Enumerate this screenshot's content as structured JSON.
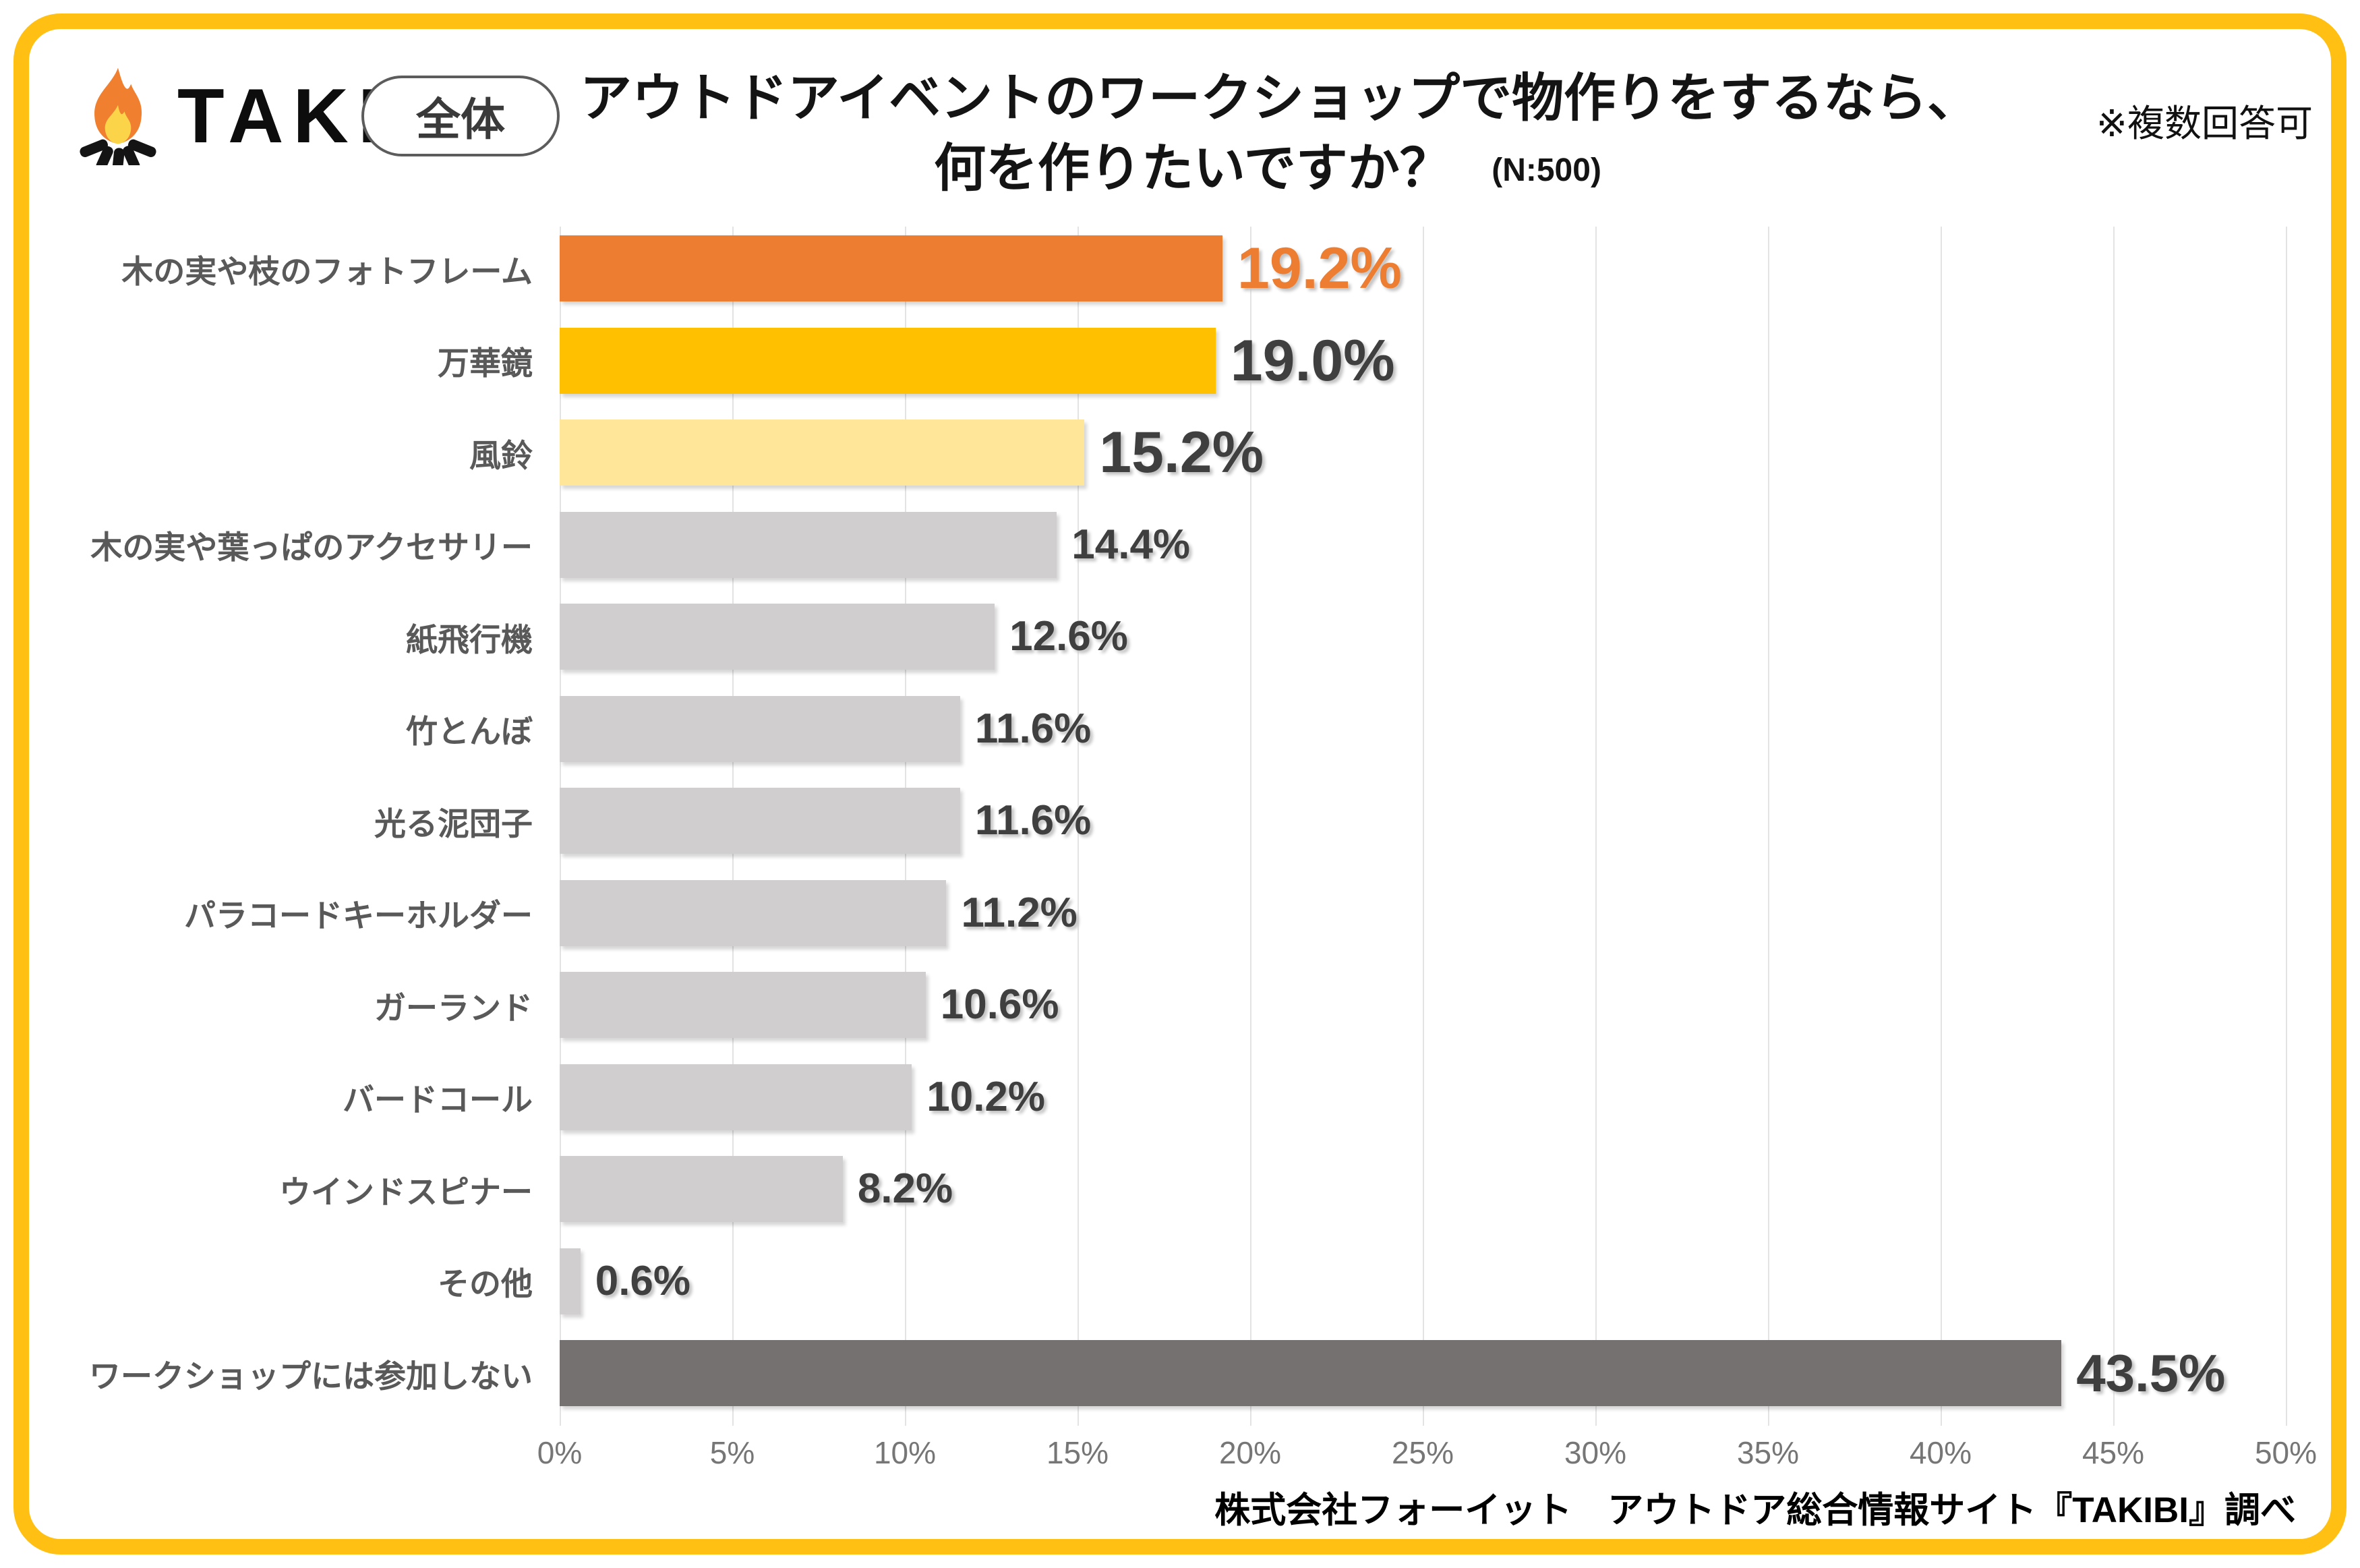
{
  "header": {
    "logo_text": "TAKIBI",
    "scope_badge": "全体",
    "title_line1": "アウトドアイベントのワークショップで物作りをするなら、",
    "title_line2": "何を作りたいですか？",
    "sample_note": "(N:500)",
    "multi_answer_note": "※複数回答可"
  },
  "chart_data": {
    "type": "bar",
    "orientation": "horizontal",
    "title": "アウトドアイベントのワークショップで物作りをするなら、何を作りたいですか？",
    "sample_size": "N:500",
    "categories": [
      "木の実や枝のフォトフレーム",
      "万華鏡",
      "風鈴",
      "木の実や葉っぱのアクセサリー",
      "紙飛行機",
      "竹とんぼ",
      "光る泥団子",
      "パラコードキーホルダー",
      "ガーランド",
      "バードコール",
      "ウインドスピナー",
      "その他",
      "ワークショップには参加しない"
    ],
    "values": [
      19.2,
      19.0,
      15.2,
      14.4,
      12.6,
      11.6,
      11.6,
      11.2,
      10.6,
      10.2,
      8.2,
      0.6,
      43.5
    ],
    "value_labels": [
      "19.2%",
      "19.0%",
      "15.2%",
      "14.4%",
      "12.6%",
      "11.6%",
      "11.6%",
      "11.2%",
      "10.6%",
      "10.2%",
      "8.2%",
      "0.6%",
      "43.5%"
    ],
    "bar_colors": [
      "#ED7D31",
      "#FFC000",
      "#FFE699",
      "#D0CECE",
      "#D0CECE",
      "#D0CECE",
      "#D0CECE",
      "#D0CECE",
      "#D0CECE",
      "#D0CECE",
      "#D0CECE",
      "#D0CECE",
      "#757171"
    ],
    "value_colors": [
      "#ED7D31",
      "#3f3f3f",
      "#3f3f3f",
      "#3f3f3f",
      "#3f3f3f",
      "#3f3f3f",
      "#3f3f3f",
      "#3f3f3f",
      "#3f3f3f",
      "#3f3f3f",
      "#3f3f3f",
      "#3f3f3f",
      "#3f3f3f"
    ],
    "value_sizes": [
      "xl",
      "xl",
      "xl",
      "md",
      "md",
      "md",
      "md",
      "md",
      "md",
      "md",
      "md",
      "md",
      "lg"
    ],
    "xlim": [
      0,
      50
    ],
    "x_ticks": [
      "0%",
      "5%",
      "10%",
      "15%",
      "20%",
      "25%",
      "30%",
      "35%",
      "40%",
      "45%",
      "50%"
    ],
    "grid": true,
    "legend": "none"
  },
  "footer": {
    "source": "株式会社フォーイット　アウトドア総合情報サイト『TAKIBI』調べ"
  },
  "colors": {
    "frame_border": "#FFC013",
    "accent_orange": "#ED7D31",
    "accent_gold": "#FFC000",
    "accent_pale_yellow": "#FFE699",
    "bar_gray": "#D0CECE",
    "bar_dark": "#757171",
    "gridline": "#E3E3E3",
    "label_gray": "#595959"
  }
}
